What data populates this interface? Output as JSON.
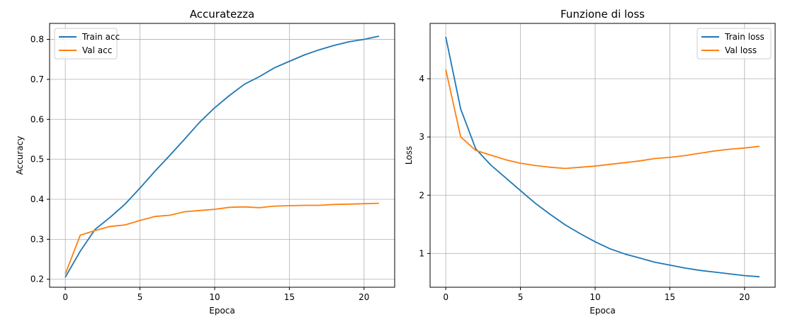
{
  "chart_data": [
    {
      "type": "line",
      "title": "Accuratezza",
      "xlabel": "Epoca",
      "ylabel": "Accuracy",
      "xlim": [
        -1.05,
        22.05
      ],
      "ylim": [
        0.18,
        0.84
      ],
      "xticks": [
        0,
        5,
        10,
        15,
        20
      ],
      "yticks": [
        0.2,
        0.3,
        0.4,
        0.5,
        0.6,
        0.7,
        0.8
      ],
      "xtick_labels": [
        "0",
        "5",
        "10",
        "15",
        "20"
      ],
      "ytick_labels": [
        "0.2",
        "0.3",
        "0.4",
        "0.5",
        "0.6",
        "0.7",
        "0.8"
      ],
      "grid": true,
      "legend_position": "top-left",
      "x": [
        0,
        1,
        2,
        3,
        4,
        5,
        6,
        7,
        8,
        9,
        10,
        11,
        12,
        13,
        14,
        15,
        16,
        17,
        18,
        19,
        20,
        21
      ],
      "series": [
        {
          "name": "Train acc",
          "color": "#1f77b4",
          "values": [
            0.205,
            0.27,
            0.325,
            0.355,
            0.388,
            0.428,
            0.47,
            0.51,
            0.551,
            0.593,
            0.629,
            0.66,
            0.688,
            0.707,
            0.729,
            0.745,
            0.761,
            0.774,
            0.785,
            0.794,
            0.8,
            0.808
          ]
        },
        {
          "name": "Val acc",
          "color": "#ff7f0e",
          "values": [
            0.213,
            0.31,
            0.322,
            0.332,
            0.336,
            0.347,
            0.357,
            0.36,
            0.369,
            0.372,
            0.375,
            0.38,
            0.381,
            0.379,
            0.383,
            0.384,
            0.385,
            0.385,
            0.387,
            0.388,
            0.389,
            0.39
          ]
        }
      ]
    },
    {
      "type": "line",
      "title": "Funzione di loss",
      "xlabel": "Epoca",
      "ylabel": "Loss",
      "xlim": [
        -1.05,
        22.05
      ],
      "ylim": [
        0.42,
        4.95
      ],
      "xticks": [
        0,
        5,
        10,
        15,
        20
      ],
      "yticks": [
        1,
        2,
        3,
        4
      ],
      "xtick_labels": [
        "0",
        "5",
        "10",
        "15",
        "20"
      ],
      "ytick_labels": [
        "1",
        "2",
        "3",
        "4"
      ],
      "grid": true,
      "legend_position": "top-right",
      "x": [
        0,
        1,
        2,
        3,
        4,
        5,
        6,
        7,
        8,
        9,
        10,
        11,
        12,
        13,
        14,
        15,
        16,
        17,
        18,
        19,
        20,
        21
      ],
      "series": [
        {
          "name": "Train loss",
          "color": "#1f77b4",
          "values": [
            4.72,
            3.48,
            2.8,
            2.52,
            2.3,
            2.08,
            1.86,
            1.67,
            1.49,
            1.34,
            1.2,
            1.08,
            0.99,
            0.92,
            0.85,
            0.8,
            0.75,
            0.71,
            0.68,
            0.65,
            0.62,
            0.6
          ]
        },
        {
          "name": "Val loss",
          "color": "#ff7f0e",
          "values": [
            4.16,
            3.0,
            2.77,
            2.69,
            2.61,
            2.55,
            2.51,
            2.48,
            2.46,
            2.48,
            2.5,
            2.53,
            2.56,
            2.59,
            2.63,
            2.65,
            2.68,
            2.72,
            2.76,
            2.79,
            2.81,
            2.84
          ]
        }
      ]
    }
  ]
}
